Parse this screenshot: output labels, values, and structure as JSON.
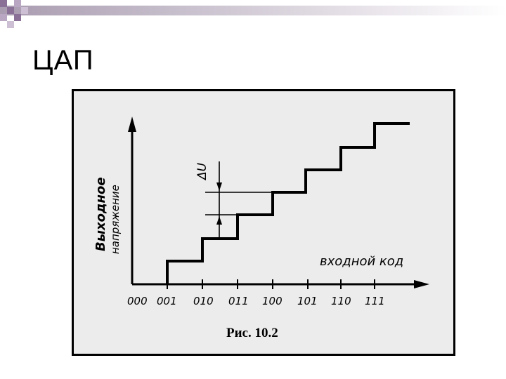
{
  "slide": {
    "title": "ЦАП"
  },
  "figure": {
    "y_axis_label_line1": "Выходное",
    "y_axis_label_line2": "напряжение",
    "x_axis_label": "входной код",
    "delta_label": "ΔU",
    "caption": "Рис. 10.2",
    "codes": [
      "000",
      "001",
      "010",
      "011",
      "100",
      "101",
      "110",
      "111"
    ]
  },
  "colors": {
    "figure_background": "#ececec",
    "line": "#000000",
    "header_gradient_start": "#a99bb0",
    "checker_purple": "#8a6f96"
  }
}
